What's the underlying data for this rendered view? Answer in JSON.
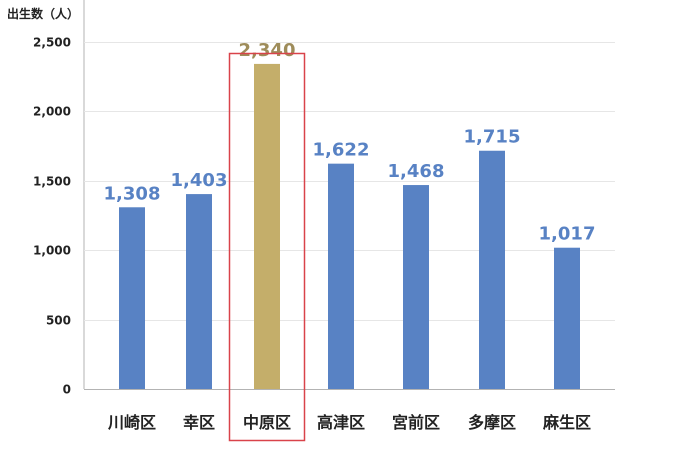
{
  "chart_data": {
    "type": "bar",
    "ylabel": "出生数（人）",
    "categories": [
      "川崎区",
      "幸区",
      "中原区",
      "高津区",
      "宮前区",
      "多摩区",
      "麻生区"
    ],
    "values": [
      1308,
      1403,
      2340,
      1622,
      1468,
      1715,
      1017
    ],
    "data_labels": [
      "1,308",
      "1,403",
      "2,340",
      "1,622",
      "1,468",
      "1,715",
      "1,017"
    ],
    "ylim": [
      0,
      2800
    ],
    "yticks": [
      0,
      500,
      1000,
      1500,
      2000,
      2500
    ],
    "ytick_labels": [
      "0",
      "500",
      "1,000",
      "1,500",
      "2,000",
      "2,500"
    ],
    "highlight_index": 2,
    "grid": true,
    "legend": "none",
    "colors": {
      "bar": "#5882c4",
      "highlight_bar": "#c4ae6a",
      "label": "#5882c4",
      "highlight_label": "#9e8c5a",
      "highlight_box": "#d9434a",
      "grid": "#e6e6e6",
      "axis": "#b3b3b3"
    }
  }
}
